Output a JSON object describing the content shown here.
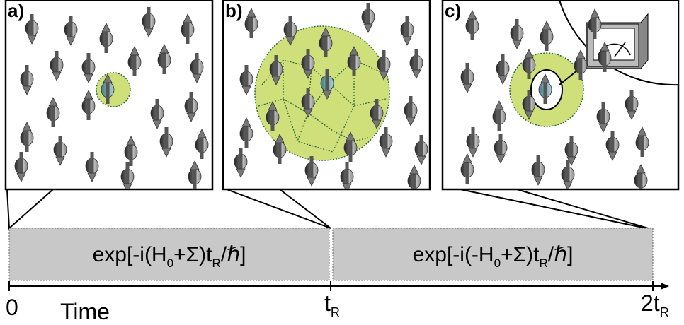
{
  "panels": [
    {
      "label": "a)"
    },
    {
      "label": "b)"
    },
    {
      "label": "c)"
    }
  ],
  "stages": [
    {
      "parts": [
        "exp[-i(H",
        "0",
        "+Σ)t",
        "R",
        "/ℏ]"
      ]
    },
    {
      "parts": [
        "exp[-i(-H",
        "0",
        "+Σ)t",
        "R",
        "/ℏ]"
      ]
    }
  ],
  "axis": {
    "title": "Time",
    "ticks": [
      {
        "main": "0"
      },
      {
        "main": "t",
        "sub": "R"
      },
      {
        "main": "2t",
        "sub": "R"
      }
    ]
  }
}
